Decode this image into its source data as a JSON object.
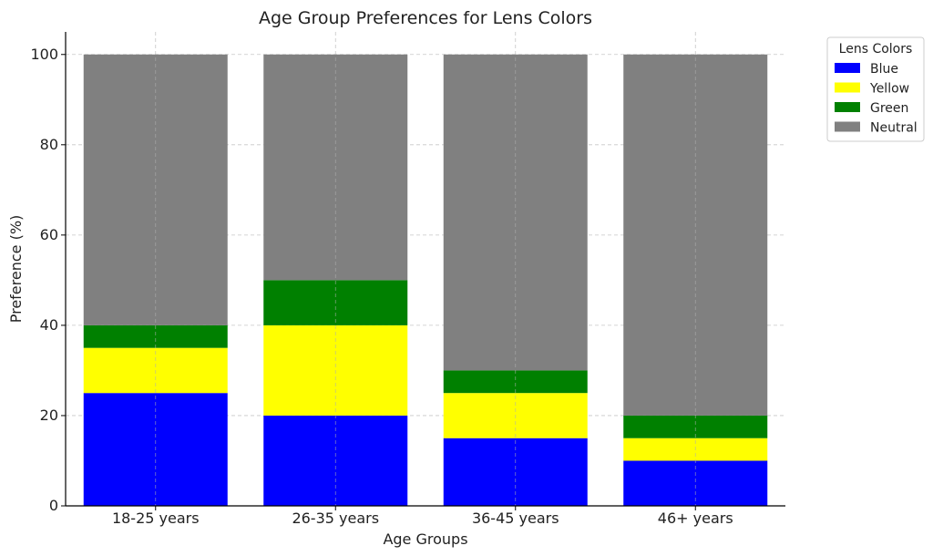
{
  "chart_data": {
    "type": "bar",
    "stacked": true,
    "title": "Age Group Preferences for Lens Colors",
    "xlabel": "Age Groups",
    "ylabel": "Preference (%)",
    "ylim": [
      0,
      105
    ],
    "yticks": [
      0,
      20,
      40,
      60,
      80,
      100
    ],
    "grid": true,
    "categories": [
      "18-25 years",
      "26-35 years",
      "36-45 years",
      "46+ years"
    ],
    "legend": {
      "title": "Lens Colors",
      "placement": "upper-right-outside"
    },
    "series": [
      {
        "name": "Blue",
        "color": "#0000ff",
        "values": [
          25,
          20,
          15,
          10
        ]
      },
      {
        "name": "Yellow",
        "color": "#ffff00",
        "values": [
          10,
          20,
          10,
          5
        ]
      },
      {
        "name": "Green",
        "color": "#008000",
        "values": [
          5,
          10,
          5,
          5
        ]
      },
      {
        "name": "Neutral",
        "color": "#808080",
        "values": [
          60,
          50,
          70,
          80
        ]
      }
    ]
  }
}
